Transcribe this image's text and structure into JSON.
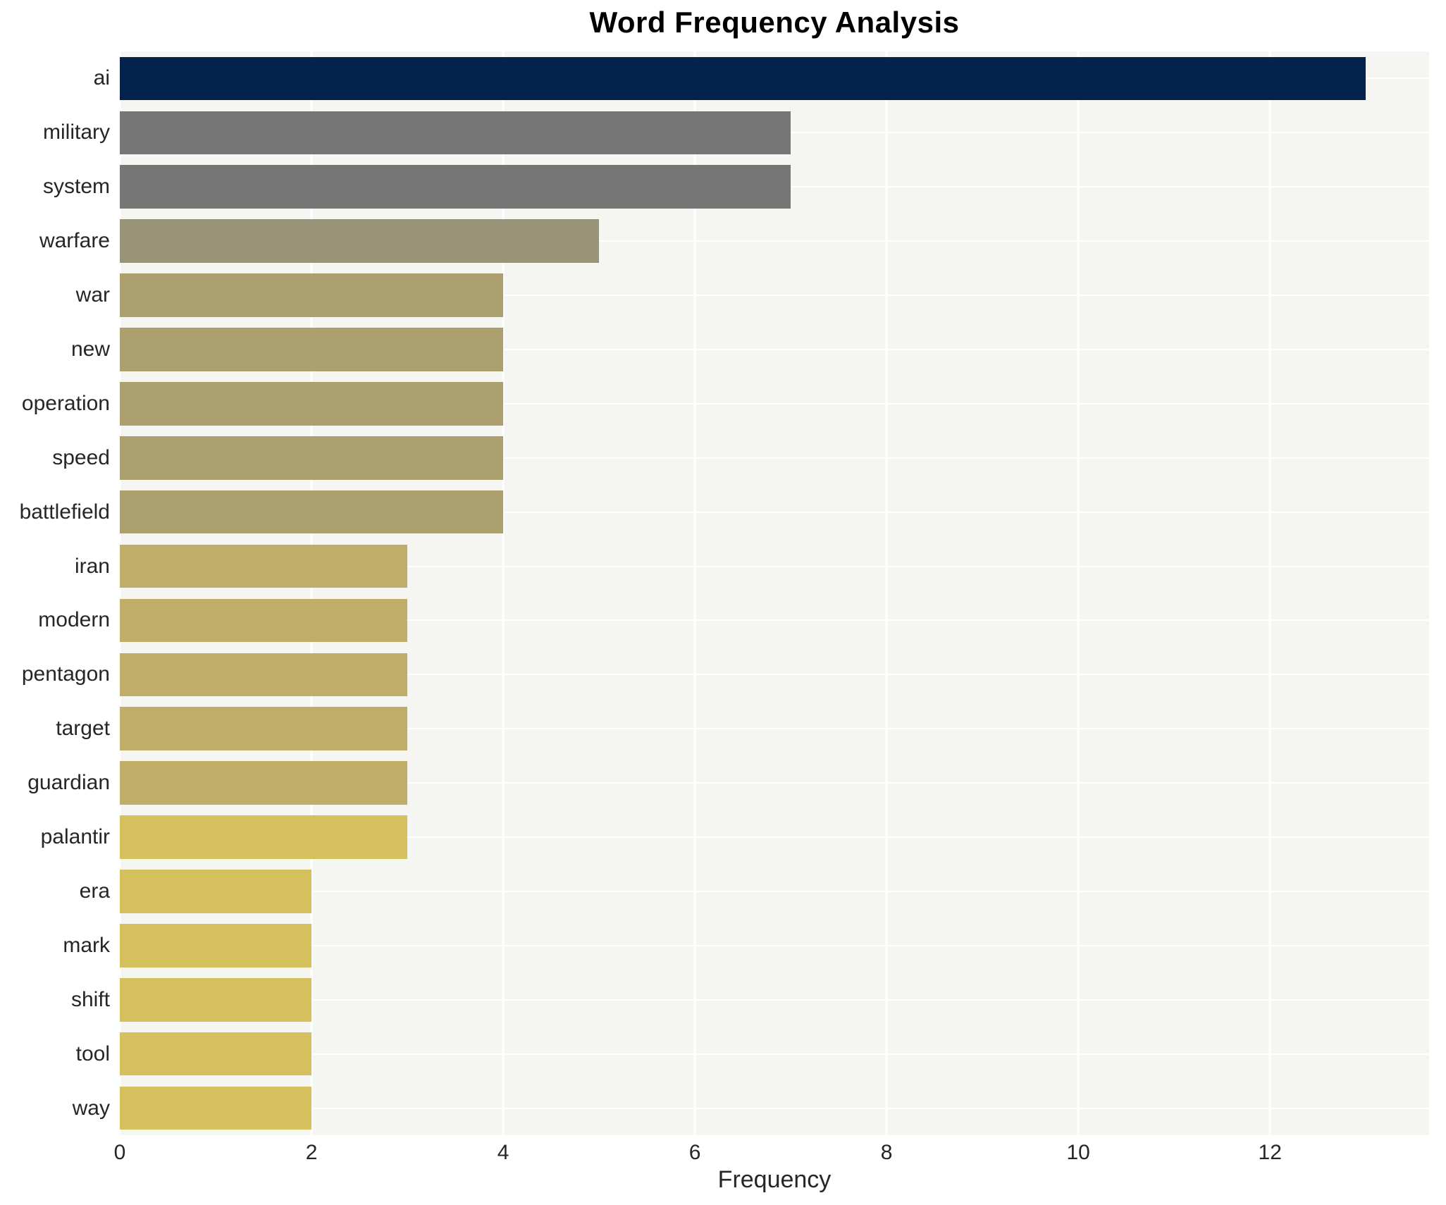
{
  "title": "Word Frequency Analysis",
  "xlabel": "Frequency",
  "chart_data": {
    "type": "bar",
    "orientation": "horizontal",
    "title": "Word Frequency Analysis",
    "xlabel": "Frequency",
    "ylabel": "",
    "categories": [
      "ai",
      "military",
      "system",
      "warfare",
      "war",
      "new",
      "operation",
      "speed",
      "battlefield",
      "iran",
      "modern",
      "pentagon",
      "target",
      "guardian",
      "palantir",
      "era",
      "mark",
      "shift",
      "tool",
      "way"
    ],
    "values": [
      13,
      7,
      7,
      5,
      4,
      4,
      4,
      4,
      4,
      3,
      3,
      3,
      3,
      3,
      3,
      2,
      2,
      2,
      2,
      2
    ],
    "bar_colors": [
      "#03234d",
      "#767676",
      "#767676",
      "#999377",
      "#aba06e",
      "#aba06e",
      "#aba06e",
      "#aba06e",
      "#aba06e",
      "#c0ad68",
      "#c0ad68",
      "#c0ad68",
      "#c0ad68",
      "#c0ad68",
      "#d4c05c",
      "#d4c05c",
      "#d4c05c",
      "#d4c05c",
      "#d4c05c",
      "#d4c05c"
    ],
    "xlim": [
      0,
      13.66
    ],
    "xticks": [
      0,
      2,
      4,
      6,
      8,
      10,
      12
    ],
    "grid": true,
    "legend_position": "none",
    "plot_background": "#f5f5f2",
    "grid_color": "#ffffff",
    "figure_background": "#ffffff",
    "bar_height_ratio": 0.8
  }
}
